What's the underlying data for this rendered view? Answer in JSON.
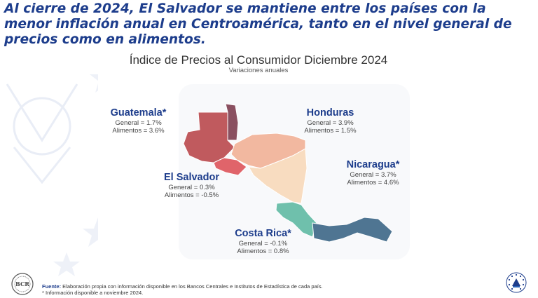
{
  "headline": "Al cierre de 2024, El Salvador se mantiene entre los países con la menor inflación anual en Centroamérica, tanto en el nivel general de precios como en alimentos.",
  "chart": {
    "title": "Índice de Precios al Consumidor Diciembre 2024",
    "subtitle": "Variaciones anuales"
  },
  "countries": {
    "guatemala": {
      "name": "Guatemala*",
      "general": "General = 1.7%",
      "food": "Alimentos = 3.6%",
      "color": "#c05a5e"
    },
    "honduras": {
      "name": "Honduras",
      "general": "General = 3.9%",
      "food": "Alimentos = 1.5%",
      "color": "#f2b8a0"
    },
    "nicaragua": {
      "name": "Nicaragua*",
      "general": "General = 3.7%",
      "food": "Alimentos = 4.6%",
      "color": "#f8dcc0"
    },
    "el_salvador": {
      "name": "El Salvador",
      "general": "General = 0.3%",
      "food": "Alimentos = -0.5%",
      "color": "#e0646a"
    },
    "costa_rica": {
      "name": "Costa Rica*",
      "general": "General = -0.1%",
      "food": "Alimentos = 0.8%",
      "color": "#6fc0ac"
    },
    "belize": {
      "color": "#8a5060"
    },
    "panama": {
      "color": "#4f7592"
    }
  },
  "footer": {
    "source_label": "Fuente:",
    "source_text": " Elaboración propia con información disponible en los Bancos Centrales e Institutos de Estadística de cada país.",
    "note": "* Información disponible a noviembre 2024."
  },
  "icons": {
    "left_logo": "bcr-seal-icon",
    "right_logo": "el-salvador-coat-of-arms-icon"
  }
}
